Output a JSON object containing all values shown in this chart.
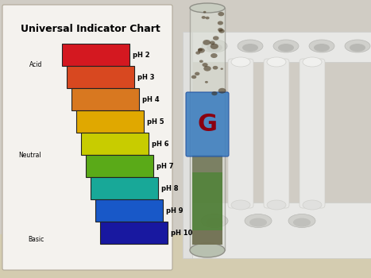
{
  "title": "Universal Indicator Chart",
  "ph_labels": [
    "pH 2",
    "pH 3",
    "pH 4",
    "pH 5",
    "pH 6",
    "pH 7",
    "pH 8",
    "pH 9",
    "pH 10"
  ],
  "ph_colors": [
    "#d41820",
    "#d84820",
    "#d87820",
    "#e0a800",
    "#c8cc00",
    "#5aaa18",
    "#18a898",
    "#1858c8",
    "#1818a0"
  ],
  "bg_wall_color": "#c8c4bc",
  "bg_floor_color": "#d8d0b8",
  "card_bg": "#f4f2ee",
  "card_shadow": "#ddd8d0",
  "rack_white": "#e8e8e6",
  "rack_shadow": "#c8c8c4",
  "tube_glass": "#d8dcd0",
  "tube_liquid": "#4a7a30",
  "tube_sediment": "#888070",
  "tube_label_blue": "#4080c0",
  "tube_letter": "G",
  "tube_letter_color": "#8b0010",
  "title_fontsize": 9,
  "label_fontsize": 6,
  "side_label_fontsize": 5.5
}
